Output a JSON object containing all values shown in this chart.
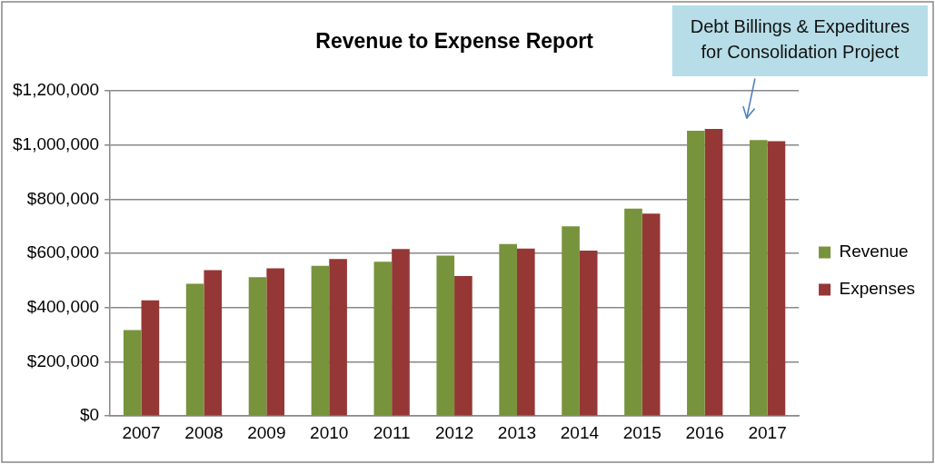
{
  "chart_data": {
    "type": "bar",
    "title": "Revenue to Expense Report",
    "categories": [
      "2007",
      "2008",
      "2009",
      "2010",
      "2011",
      "2012",
      "2013",
      "2014",
      "2015",
      "2016",
      "2017"
    ],
    "series": [
      {
        "name": "Revenue",
        "color": "#77933c",
        "values": [
          317000,
          488000,
          512000,
          554000,
          569000,
          592000,
          635000,
          700000,
          765000,
          1053000,
          1018000
        ]
      },
      {
        "name": "Expenses",
        "color": "#953735",
        "values": [
          427000,
          538000,
          545000,
          579000,
          616000,
          517000,
          618000,
          610000,
          747000,
          1059000,
          1014000
        ]
      }
    ],
    "ylim": [
      0,
      1200000
    ],
    "yticks": [
      {
        "value": 0,
        "label": "$0"
      },
      {
        "value": 200000,
        "label": "$200,000"
      },
      {
        "value": 400000,
        "label": "$400,000"
      },
      {
        "value": 600000,
        "label": "$600,000"
      },
      {
        "value": 800000,
        "label": "$800,000"
      },
      {
        "value": 1000000,
        "label": "$1,000,000"
      },
      {
        "value": 1200000,
        "label": "$1,200,000"
      }
    ],
    "grid": "y",
    "legend": "right",
    "annotations": [
      "Debt Billings & Expeditures\nfor Consolidation Project"
    ]
  }
}
